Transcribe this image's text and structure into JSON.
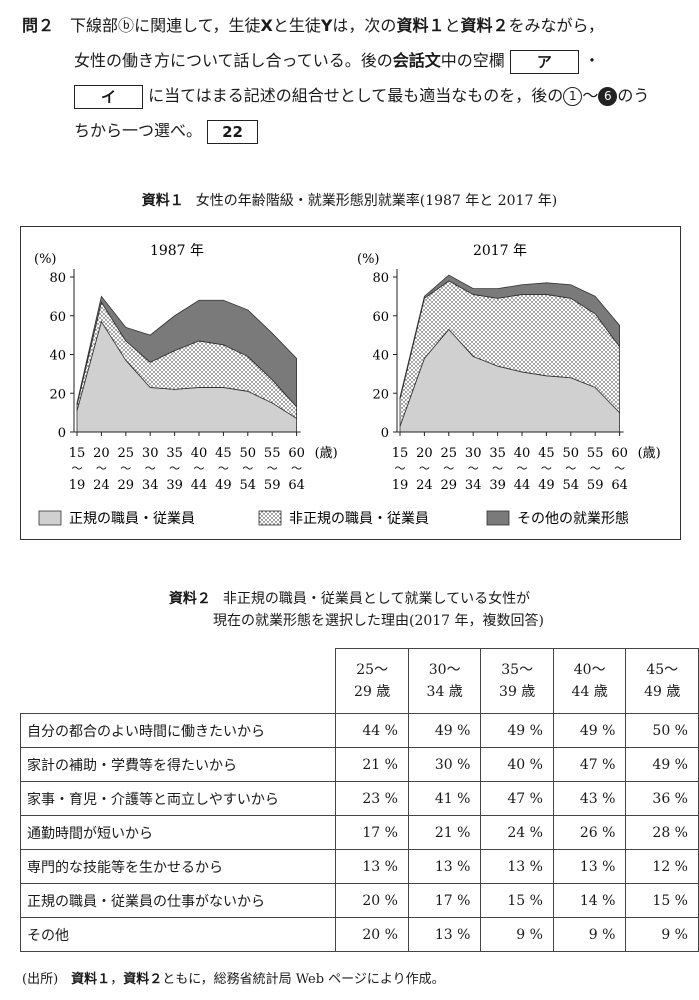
{
  "question": {
    "number": "問２",
    "line1_a": "下線部",
    "marker": "ⓑ",
    "line1_b": "に関連して，生徒",
    "student_x": "X",
    "line1_c": "と生徒",
    "student_y": "Y",
    "line1_d": "は，次の",
    "ref1": "資料１",
    "line1_e": "と",
    "ref2": "資料２",
    "line1_f": "をみながら，",
    "line2_a": "女性の働き方について話し合っている。後の",
    "dialogue": "会話文",
    "line2_b": "中の空欄",
    "blank_a": "ア",
    "sep": "・",
    "blank_i": "イ",
    "line3_a": "に当てはまる記述の組合せとして最も適当なものを，後の",
    "choice_first": "1",
    "tilde": "〜",
    "choice_last": "6",
    "line3_b": "のう",
    "line4_a": "ちから一つ選べ。",
    "answer_box": "22"
  },
  "resource1": {
    "label": "資料１",
    "title": "女性の年齢階級・就業形態別就業率(1987 年と 2017 年)"
  },
  "chart_data": [
    {
      "type": "area",
      "title": "1987 年",
      "ylabel": "(%)",
      "xunit": "(歳)",
      "ylim": [
        0,
        80
      ],
      "yticks": [
        0,
        20,
        40,
        60,
        80
      ],
      "categories": [
        "15〜19",
        "20〜24",
        "25〜29",
        "30〜34",
        "35〜39",
        "40〜44",
        "45〜49",
        "50〜54",
        "55〜59",
        "60〜64"
      ],
      "tick_top": [
        "15",
        "20",
        "25",
        "30",
        "35",
        "40",
        "45",
        "50",
        "55",
        "60"
      ],
      "tick_bottom": [
        "19",
        "24",
        "29",
        "34",
        "39",
        "44",
        "49",
        "54",
        "59",
        "64"
      ],
      "stacked": true,
      "series": [
        {
          "name": "正規の職員・従業員",
          "color": "#d0d0d0",
          "pattern": "solid",
          "values": [
            11,
            57,
            37,
            23,
            22,
            23,
            23,
            21,
            15,
            7
          ]
        },
        {
          "name": "非正規の職員・従業員",
          "color": "#ffffff",
          "pattern": "dotted",
          "values": [
            3,
            10,
            10,
            13,
            20,
            24,
            22,
            18,
            12,
            6
          ]
        },
        {
          "name": "その他の就業形態",
          "color": "#7a7a7a",
          "pattern": "solid",
          "values": [
            1,
            3,
            7,
            14,
            18,
            21,
            23,
            24,
            24,
            25
          ]
        }
      ]
    },
    {
      "type": "area",
      "title": "2017 年",
      "ylabel": "(%)",
      "xunit": "(歳)",
      "ylim": [
        0,
        80
      ],
      "yticks": [
        0,
        20,
        40,
        60,
        80
      ],
      "categories": [
        "15〜19",
        "20〜24",
        "25〜29",
        "30〜34",
        "35〜39",
        "40〜44",
        "45〜49",
        "50〜54",
        "55〜59",
        "60〜64"
      ],
      "tick_top": [
        "15",
        "20",
        "25",
        "30",
        "35",
        "40",
        "45",
        "50",
        "55",
        "60"
      ],
      "tick_bottom": [
        "19",
        "24",
        "29",
        "34",
        "39",
        "44",
        "49",
        "54",
        "59",
        "64"
      ],
      "stacked": true,
      "series": [
        {
          "name": "正規の職員・従業員",
          "color": "#d0d0d0",
          "pattern": "solid",
          "values": [
            3,
            38,
            53,
            39,
            34,
            31,
            29,
            28,
            23,
            10
          ]
        },
        {
          "name": "非正規の職員・従業員",
          "color": "#ffffff",
          "pattern": "dotted",
          "values": [
            14,
            31,
            25,
            32,
            35,
            40,
            42,
            41,
            38,
            34
          ]
        },
        {
          "name": "その他の就業形態",
          "color": "#7a7a7a",
          "pattern": "solid",
          "values": [
            1,
            1,
            3,
            3,
            5,
            5,
            6,
            7,
            9,
            11
          ]
        }
      ]
    }
  ],
  "legend": [
    "正規の職員・従業員",
    "非正規の職員・従業員",
    "その他の就業形態"
  ],
  "resource2": {
    "label": "資料２",
    "title_line1": "非正規の職員・従業員として就業している女性が",
    "title_line2": "現在の就業形態を選択した理由(2017 年，複数回答)",
    "columns": [
      {
        "top": "25〜",
        "bottom": "29 歳"
      },
      {
        "top": "30〜",
        "bottom": "34 歳"
      },
      {
        "top": "35〜",
        "bottom": "39 歳"
      },
      {
        "top": "40〜",
        "bottom": "44 歳"
      },
      {
        "top": "45〜",
        "bottom": "49 歳"
      }
    ],
    "rows": [
      {
        "label": "自分の都合のよい時間に働きたいから",
        "values": [
          "44 %",
          "49 %",
          "49 %",
          "49 %",
          "50 %"
        ]
      },
      {
        "label": "家計の補助・学費等を得たいから",
        "values": [
          "21 %",
          "30 %",
          "40 %",
          "47 %",
          "49 %"
        ]
      },
      {
        "label": "家事・育児・介護等と両立しやすいから",
        "values": [
          "23 %",
          "41 %",
          "47 %",
          "43 %",
          "36 %"
        ]
      },
      {
        "label": "通勤時間が短いから",
        "values": [
          "17 %",
          "21 %",
          "24 %",
          "26 %",
          "28 %"
        ]
      },
      {
        "label": "専門的な技能等を生かせるから",
        "values": [
          "13 %",
          "13 %",
          "13 %",
          "13 %",
          "12 %"
        ]
      },
      {
        "label": "正規の職員・従業員の仕事がないから",
        "values": [
          "20 %",
          "17 %",
          "15 %",
          "14 %",
          "15 %"
        ]
      },
      {
        "label": "その他",
        "values": [
          "20 %",
          "13 %",
          "9 %",
          "9 %",
          "9 %"
        ]
      }
    ]
  },
  "source": {
    "prefix": "(出所)",
    "ref1": "資料１",
    "comma": "，",
    "ref2": "資料２",
    "text": "ともに，総務省統計局 Web ページにより作成。"
  }
}
